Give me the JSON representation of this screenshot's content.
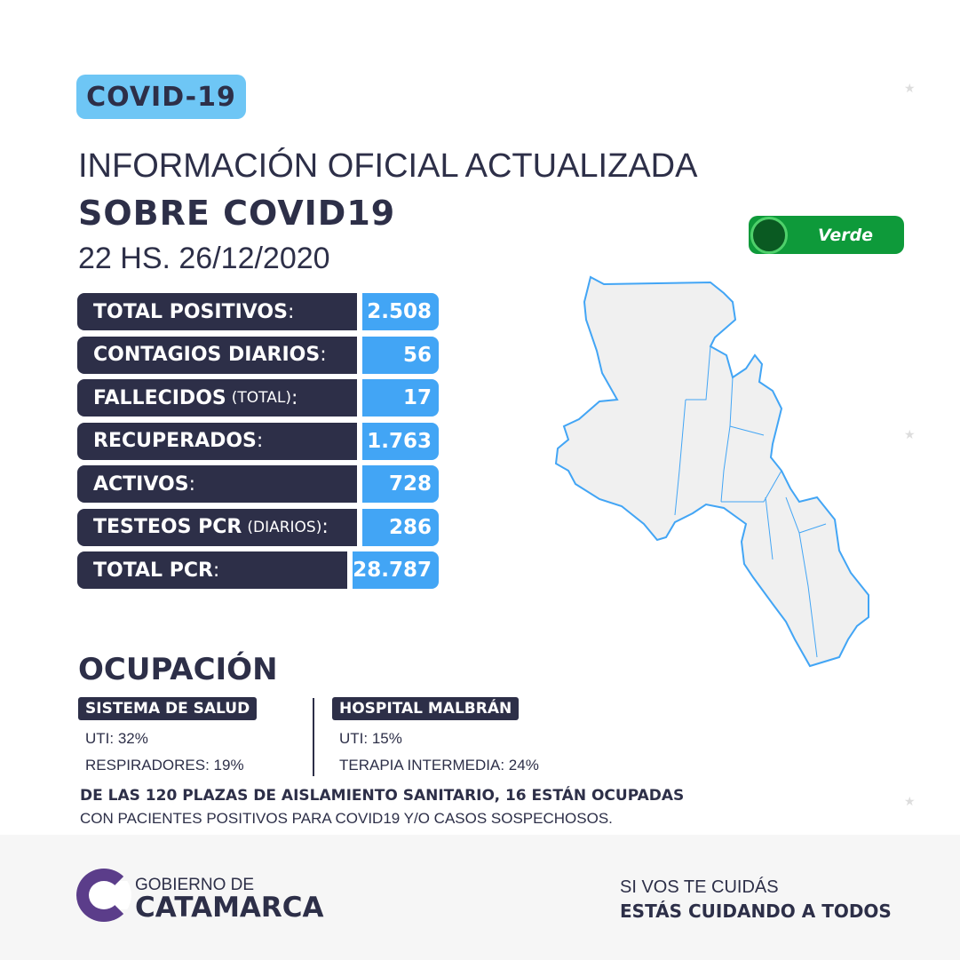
{
  "badge": "COVID-19",
  "title_line1": "INFORMACIÓN OFICIAL ACTUALIZADA",
  "title_line2": "SOBRE COVID19",
  "datetime": "22 HS. 26/12/2020",
  "status": {
    "label": "Verde",
    "color": "#0e9a3a"
  },
  "stats": [
    {
      "label": "TOTAL POSITIVOS",
      "note": "",
      "value": "2.508"
    },
    {
      "label": "CONTAGIOS DIARIOS",
      "note": "",
      "value": "56"
    },
    {
      "label": "FALLECIDOS",
      "note": "(TOTAL)",
      "value": "17"
    },
    {
      "label": "RECUPERADOS",
      "note": "",
      "value": "1.763"
    },
    {
      "label": "ACTIVOS",
      "note": "",
      "value": "728"
    },
    {
      "label": "TESTEOS PCR",
      "note": "(DIARIOS)",
      "value": "286"
    },
    {
      "label": "TOTAL PCR",
      "note": "",
      "value": "28.787"
    }
  ],
  "occupancy": {
    "title": "OCUPACIÓN",
    "sistema": {
      "title": "SISTEMA DE SALUD",
      "lines": [
        "UTI: 32%",
        "RESPIRADORES: 19%"
      ]
    },
    "hospital": {
      "title": "HOSPITAL MALBRÁN",
      "lines": [
        "UTI: 15%",
        "TERAPIA INTERMEDIA: 24%"
      ]
    },
    "note_bold": "DE LAS 120 PLAZAS DE AISLAMIENTO SANITARIO, 16 ESTÁN OCUPADAS",
    "note": "CON PACIENTES POSITIVOS PARA COVID19 Y/O CASOS SOSPECHOSOS."
  },
  "footer": {
    "logo_top": "GOBIERNO DE",
    "logo_main": "CATAMARCA",
    "slogan1": "SI VOS TE CUIDÁS",
    "slogan2": "ESTÁS CUIDANDO A TODOS"
  },
  "colors": {
    "navy": "#2d2f48",
    "blue": "#42a5f5",
    "badge": "#6ec6f5"
  }
}
